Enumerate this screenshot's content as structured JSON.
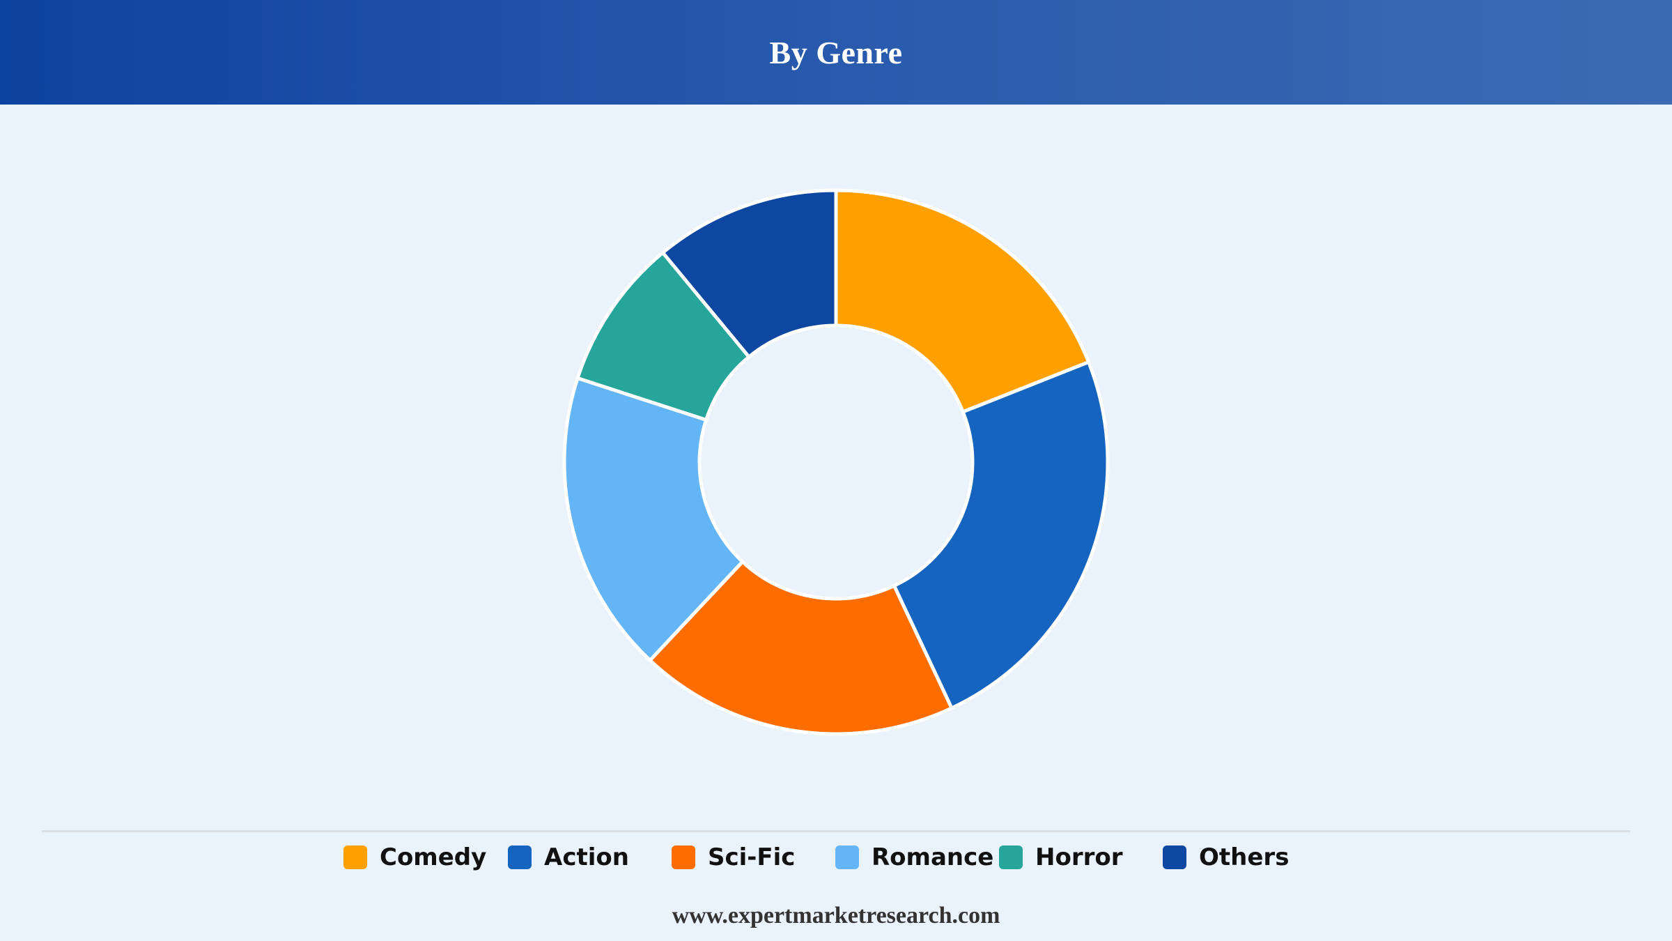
{
  "header": {
    "title": "By Genre"
  },
  "chart_data": {
    "type": "pie",
    "variant": "donut",
    "title": "By Genre",
    "categories": [
      "Comedy",
      "Action",
      "Sci-Fic",
      "Romance",
      "Horror",
      "Others"
    ],
    "values": [
      19,
      24,
      19,
      18,
      9,
      11
    ],
    "unit": "%",
    "colors": [
      "#ffa000",
      "#1565c0",
      "#ff6d00",
      "#64b5f6",
      "#26a69a",
      "#0d47a1"
    ],
    "legend_position": "bottom",
    "start_angle": "12 o'clock, clockwise",
    "data_labels": false
  },
  "legend": {
    "items": [
      {
        "label": "Comedy",
        "color": "#ffa000"
      },
      {
        "label": "Action",
        "color": "#1565c0"
      },
      {
        "label": "Sci-Fic",
        "color": "#ff6d00"
      },
      {
        "label": "Romance",
        "color": "#64b5f6"
      },
      {
        "label": "Horror",
        "color": "#26a69a"
      },
      {
        "label": "Others",
        "color": "#0d47a1"
      }
    ]
  },
  "footer": {
    "source": "www.expertmarketresearch.com"
  }
}
